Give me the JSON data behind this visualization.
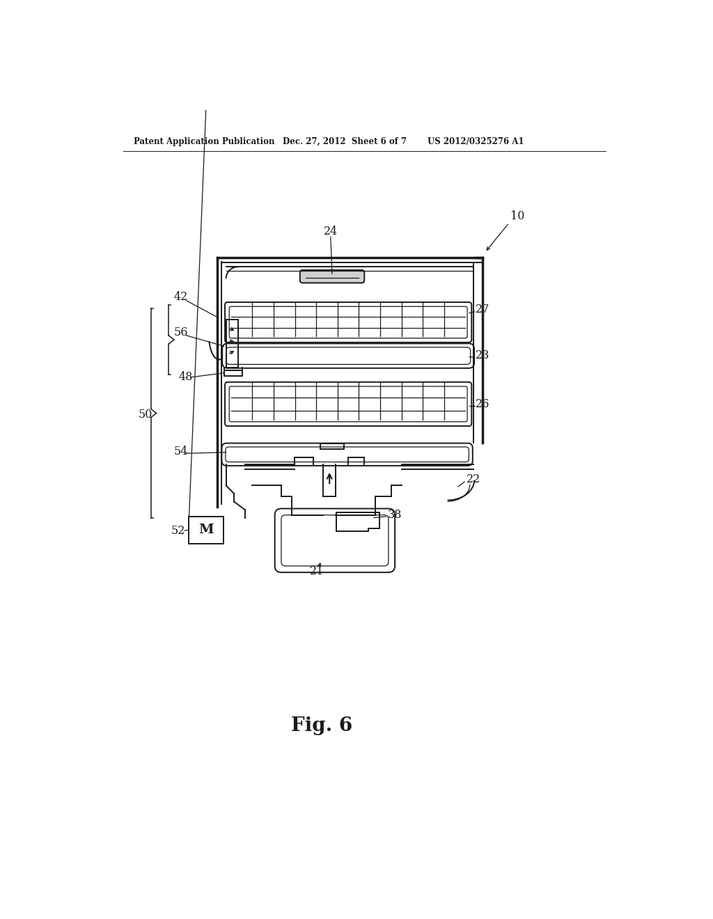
{
  "header_left": "Patent Application Publication",
  "header_center": "Dec. 27, 2012  Sheet 6 of 7",
  "header_right": "US 2012/0325276 A1",
  "fig_title": "Fig. 6",
  "bg": "#ffffff",
  "lc": "#1a1a1a"
}
